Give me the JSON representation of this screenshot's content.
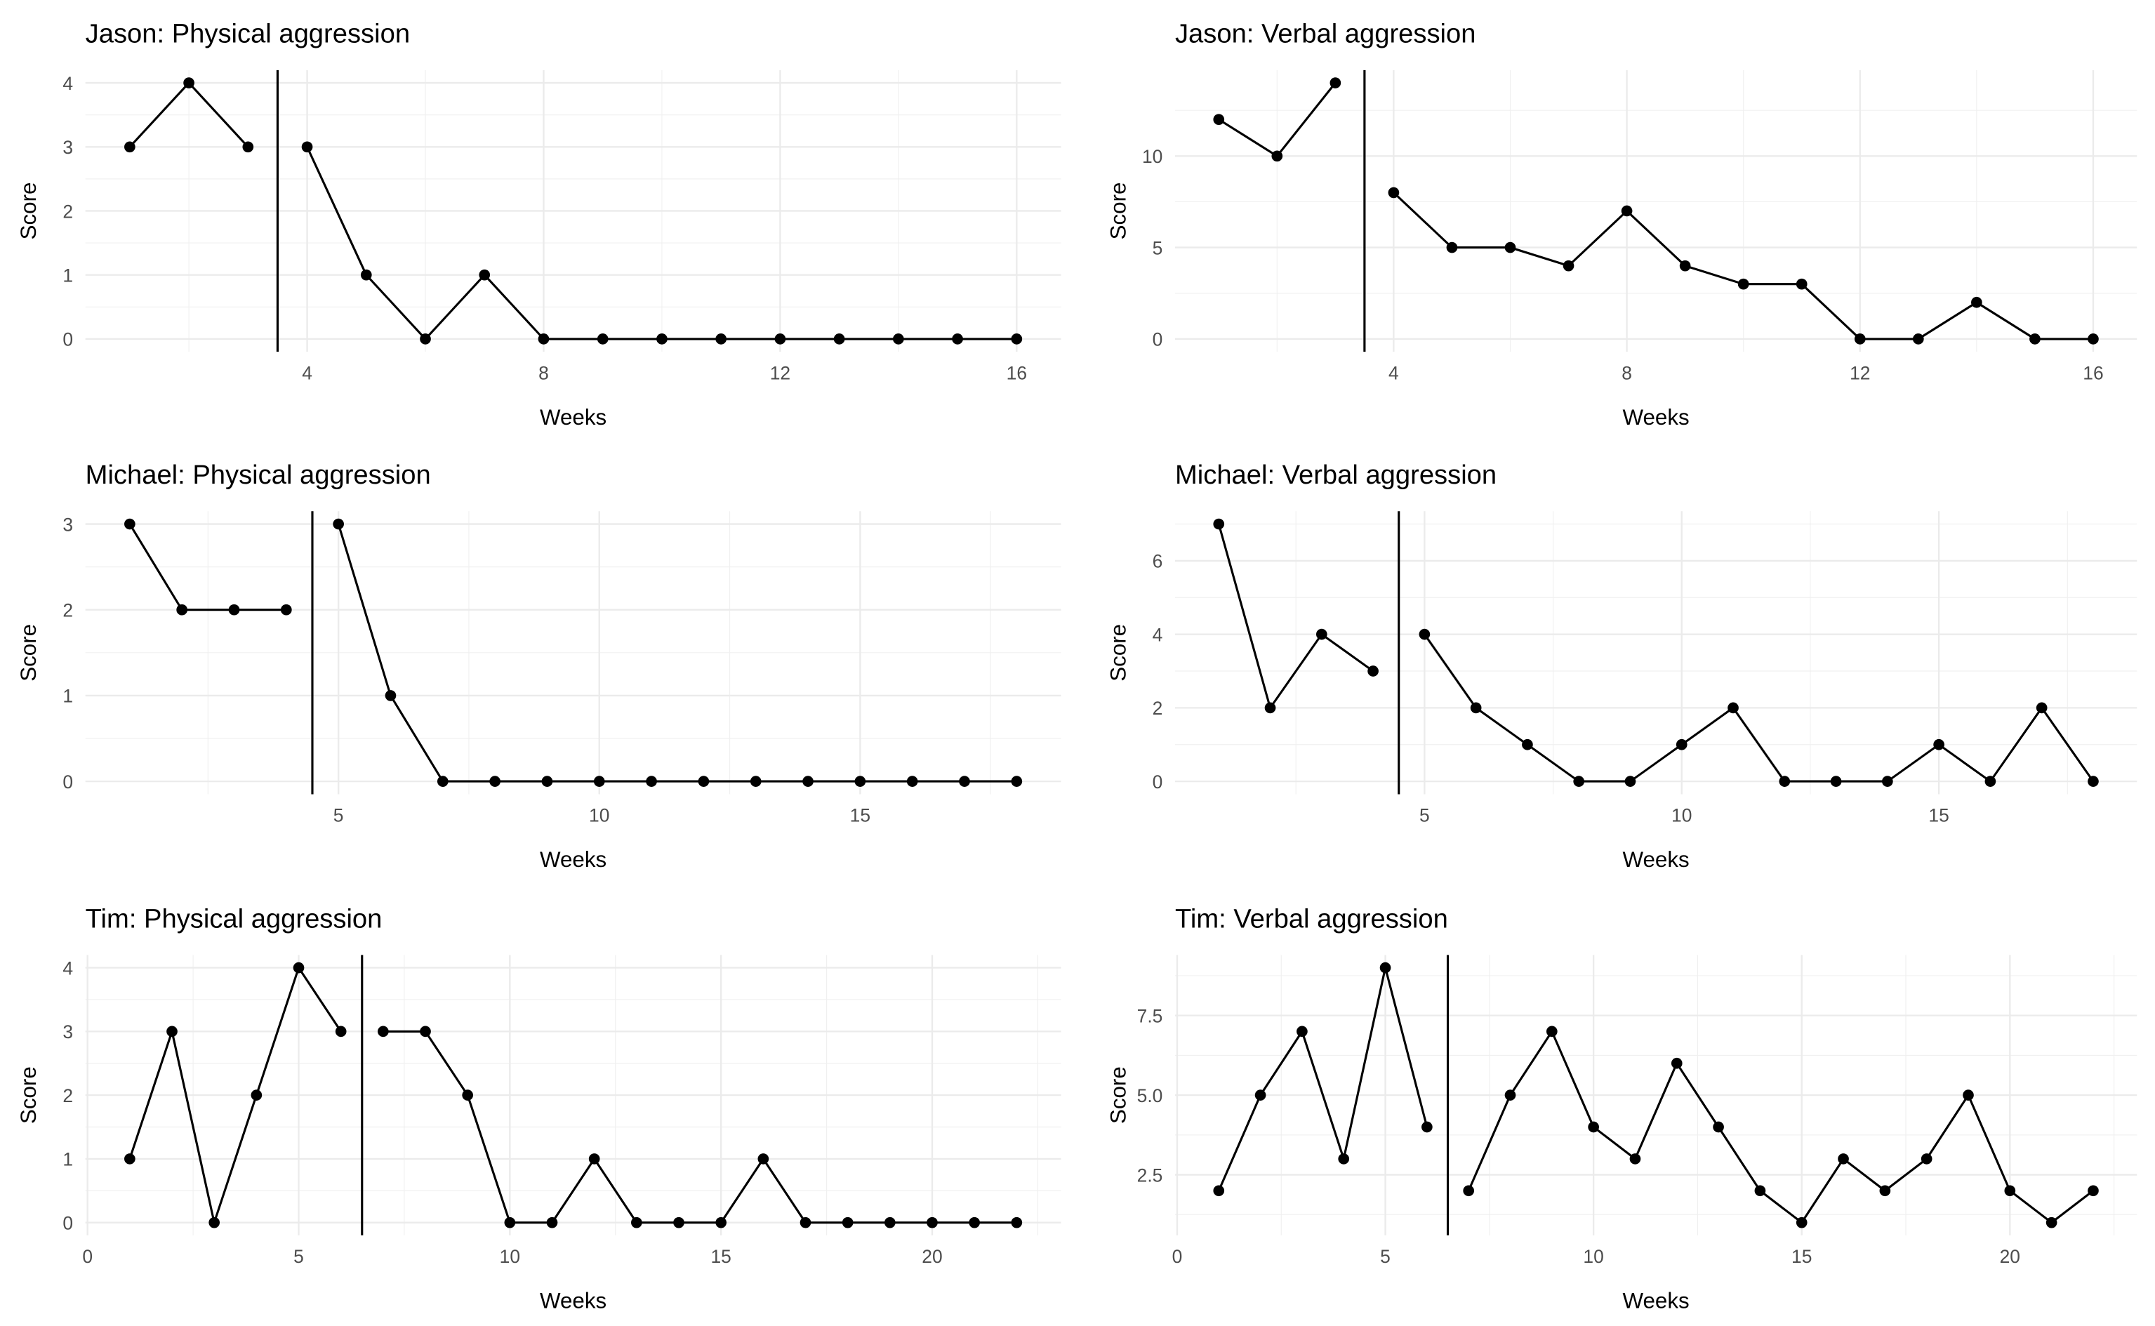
{
  "chart_data": [
    {
      "type": "line",
      "title": "Jason: Physical aggression",
      "x_label": "Weeks",
      "y_label": "Score",
      "x": [
        1,
        2,
        3,
        4,
        5,
        6,
        7,
        8,
        9,
        10,
        11,
        12,
        13,
        14,
        15,
        16
      ],
      "values": [
        3,
        4,
        3,
        3,
        1,
        0,
        1,
        0,
        0,
        0,
        0,
        0,
        0,
        0,
        0,
        0
      ],
      "xlim": [
        0.25,
        16.75
      ],
      "xticks": [
        4,
        8,
        12,
        16
      ],
      "ylim": [
        -0.2,
        4.2
      ],
      "yticks": [
        0,
        1,
        2,
        3,
        4
      ],
      "phase_line": 3.5,
      "color": "#000000",
      "grid": true
    },
    {
      "type": "line",
      "title": "Jason: Verbal aggression",
      "x_label": "Weeks",
      "y_label": "Score",
      "x": [
        1,
        2,
        3,
        4,
        5,
        6,
        7,
        8,
        9,
        10,
        11,
        12,
        13,
        14,
        15,
        16
      ],
      "values": [
        12,
        10,
        14,
        8,
        5,
        5,
        4,
        7,
        4,
        3,
        3,
        0,
        0,
        2,
        0,
        0
      ],
      "xlim": [
        0.25,
        16.75
      ],
      "xticks": [
        4,
        8,
        12,
        16
      ],
      "ylim": [
        -0.7,
        14.7
      ],
      "yticks": [
        0,
        5,
        10
      ],
      "phase_line": 3.5,
      "color": "#000000",
      "grid": true
    },
    {
      "type": "line",
      "title": "Michael: Physical aggression",
      "x_label": "Weeks",
      "y_label": "Score",
      "x": [
        1,
        2,
        3,
        4,
        5,
        6,
        7,
        8,
        9,
        10,
        11,
        12,
        13,
        14,
        15,
        16,
        17,
        18
      ],
      "values": [
        3,
        2,
        2,
        2,
        3,
        1,
        0,
        0,
        0,
        0,
        0,
        0,
        0,
        0,
        0,
        0,
        0,
        0
      ],
      "xlim": [
        0.15,
        18.85
      ],
      "xticks": [
        5,
        10,
        15
      ],
      "ylim": [
        -0.15,
        3.15
      ],
      "yticks": [
        0,
        1,
        2,
        3
      ],
      "phase_line": 4.5,
      "color": "#000000",
      "grid": true
    },
    {
      "type": "line",
      "title": "Michael: Verbal aggression",
      "x_label": "Weeks",
      "y_label": "Score",
      "x": [
        1,
        2,
        3,
        4,
        5,
        6,
        7,
        8,
        9,
        10,
        11,
        12,
        13,
        14,
        15,
        16,
        17,
        18
      ],
      "values": [
        7,
        2,
        4,
        3,
        4,
        2,
        1,
        0,
        0,
        1,
        2,
        0,
        0,
        0,
        1,
        0,
        2,
        0
      ],
      "xlim": [
        0.15,
        18.85
      ],
      "xticks": [
        5,
        10,
        15
      ],
      "ylim": [
        -0.35,
        7.35
      ],
      "yticks": [
        0,
        2,
        4,
        6
      ],
      "phase_line": 4.5,
      "color": "#000000",
      "grid": true
    },
    {
      "type": "line",
      "title": "Tim: Physical aggression",
      "x_label": "Weeks",
      "y_label": "Score",
      "x": [
        1,
        2,
        3,
        4,
        5,
        6,
        7,
        8,
        9,
        10,
        11,
        12,
        13,
        14,
        15,
        16,
        17,
        18,
        19,
        20,
        21,
        22
      ],
      "values": [
        1,
        3,
        0,
        2,
        4,
        3,
        3,
        3,
        2,
        0,
        0,
        1,
        0,
        0,
        0,
        1,
        0,
        0,
        0,
        0,
        0,
        0
      ],
      "xlim": [
        -0.05,
        23.05
      ],
      "xticks": [
        0,
        5,
        10,
        15,
        20
      ],
      "ylim": [
        -0.2,
        4.2
      ],
      "yticks": [
        0,
        1,
        2,
        3,
        4
      ],
      "phase_line": 6.5,
      "color": "#000000",
      "grid": true
    },
    {
      "type": "line",
      "title": "Tim: Verbal aggression",
      "x_label": "Weeks",
      "y_label": "Score",
      "x": [
        1,
        2,
        3,
        4,
        5,
        6,
        7,
        8,
        9,
        10,
        11,
        12,
        13,
        14,
        15,
        16,
        17,
        18,
        19,
        20,
        21,
        22
      ],
      "values": [
        2,
        5,
        7,
        3,
        9,
        4,
        2,
        5,
        7,
        4,
        3,
        6,
        4,
        2,
        1,
        3,
        2,
        3,
        5,
        2,
        1,
        2
      ],
      "xlim": [
        -0.05,
        23.05
      ],
      "xticks": [
        0,
        5,
        10,
        15,
        20
      ],
      "ylim": [
        0.6,
        9.4
      ],
      "yticks": [
        2.5,
        {
          "value": 5,
          "label": "5.0"
        },
        7.5
      ],
      "phase_line": 6.5,
      "color": "#000000",
      "grid": true
    }
  ]
}
